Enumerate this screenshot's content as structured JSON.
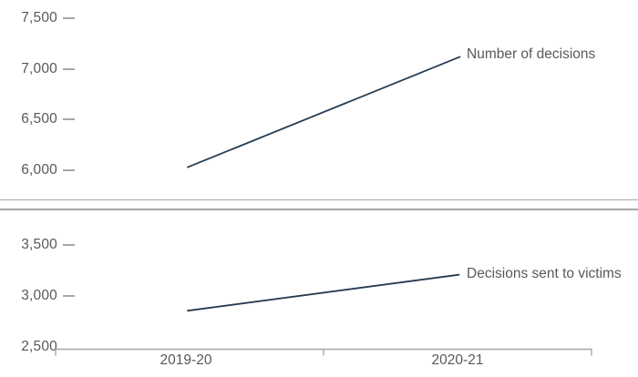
{
  "colors": {
    "series_line": "#263c52",
    "axis_text": "#595959",
    "tick_mark": "#a6a6a6",
    "axis_line": "#a6a6a6",
    "divider": "#a6a6a6",
    "background": "#ffffff"
  },
  "chart_data": [
    {
      "type": "line",
      "categories": [
        "2019-20",
        "2020-21"
      ],
      "series": [
        {
          "name": "Number of decisions",
          "values": [
            6030,
            7120
          ]
        }
      ],
      "ylim": [
        6000,
        7500
      ],
      "ytick_labels": [
        "7,500",
        "7,000",
        "6,500",
        "6,000"
      ],
      "ytick_values": [
        7500,
        7000,
        6500,
        6000
      ],
      "xlabel": "",
      "ylabel": "",
      "grid": "off",
      "x_axis_visible": false,
      "legend_position": "right-of-line-end"
    },
    {
      "type": "line",
      "categories": [
        "2019-20",
        "2020-21"
      ],
      "series": [
        {
          "name": "Decisions sent to victims",
          "values": [
            2850,
            3205
          ]
        }
      ],
      "ylim": [
        2500,
        3500
      ],
      "ytick_labels": [
        "3,500",
        "3,000",
        "2,500"
      ],
      "ytick_values": [
        3500,
        3000,
        2500
      ],
      "xlabel": "",
      "ylabel": "",
      "grid": "off",
      "x_axis_visible": true,
      "legend_position": "right-of-line-end"
    }
  ]
}
